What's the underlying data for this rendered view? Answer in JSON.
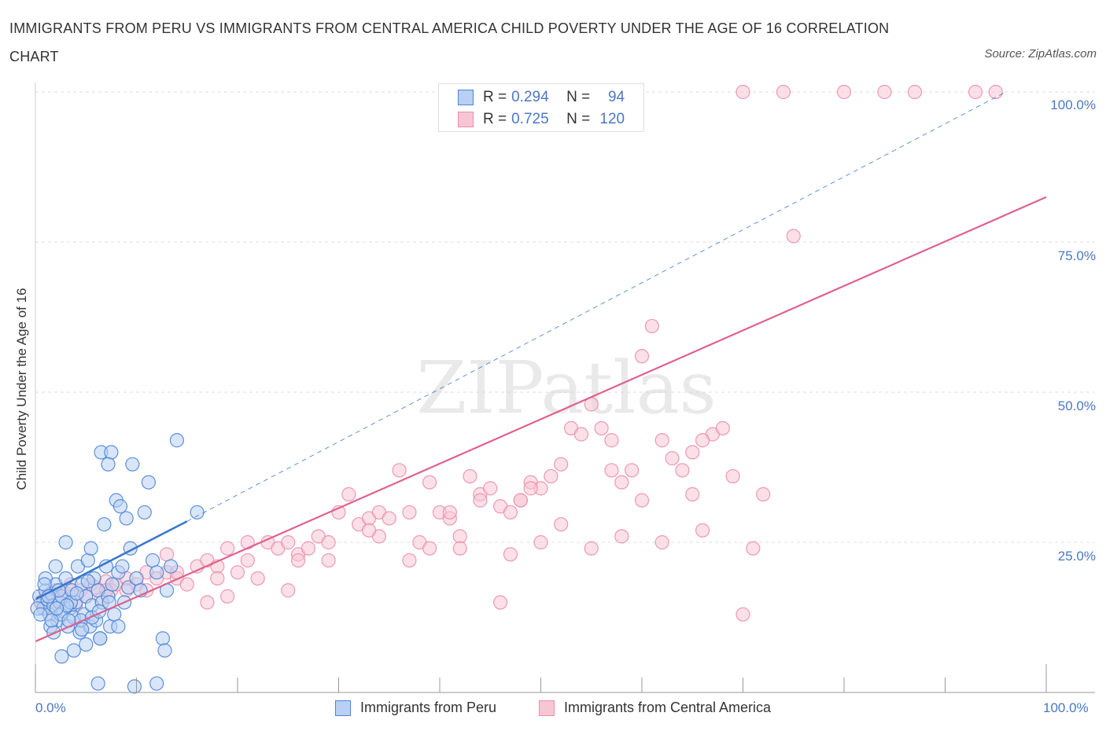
{
  "header": {
    "title": "IMMIGRANTS FROM PERU VS IMMIGRANTS FROM CENTRAL AMERICA CHILD POVERTY UNDER THE AGE OF 16 CORRELATION CHART",
    "source": "Source: ZipAtlas.com"
  },
  "legend": {
    "r_label": "R =",
    "n_label": "N =",
    "series": [
      {
        "r": "0.294",
        "n": "94"
      },
      {
        "r": "0.725",
        "n": "120"
      }
    ]
  },
  "colors": {
    "peru_fill": "#b9d0f2",
    "peru_stroke": "#4a86d8",
    "peru_line": "#3a78c8",
    "ca_fill": "#f7c6d5",
    "ca_stroke": "#ea8fab",
    "ca_line": "#e0608c",
    "grid": "#dcdcdc",
    "tick_label": "#4a78c8"
  },
  "chart_data": {
    "type": "scatter",
    "xlabel": "",
    "ylabel": "Child Poverty Under the Age of 16",
    "xlim": [
      0,
      100
    ],
    "ylim": [
      0,
      100
    ],
    "x_tick_labels": [
      "0.0%",
      "100.0%"
    ],
    "y_ticks": [
      {
        "value": 25,
        "label": "25.0%"
      },
      {
        "value": 50,
        "label": "50.0%"
      },
      {
        "value": 75,
        "label": "75.0%"
      },
      {
        "value": 100,
        "label": "100.0%"
      }
    ],
    "legend": [
      "Immigrants from Peru",
      "Immigrants from Central America"
    ],
    "watermark": "ZIPatlas",
    "series": [
      {
        "name": "Immigrants from Peru",
        "trend": {
          "x0": 0,
          "y0": 15.5,
          "x1": 15,
          "y1": 28.5,
          "dash_to": [
            96,
            100
          ]
        },
        "points": [
          [
            0.4,
            16
          ],
          [
            0.6,
            15
          ],
          [
            0.8,
            14
          ],
          [
            1,
            17
          ],
          [
            1.2,
            15.5
          ],
          [
            1.4,
            13
          ],
          [
            1.6,
            16.5
          ],
          [
            1.8,
            14.5
          ],
          [
            2,
            18
          ],
          [
            2.2,
            12
          ],
          [
            2.4,
            15
          ],
          [
            2.6,
            16
          ],
          [
            2.8,
            13.5
          ],
          [
            3,
            19
          ],
          [
            3.2,
            11
          ],
          [
            3.4,
            14
          ],
          [
            3.6,
            17
          ],
          [
            3.8,
            12.5
          ],
          [
            4,
            15
          ],
          [
            4.2,
            21
          ],
          [
            4.4,
            10
          ],
          [
            4.6,
            18
          ],
          [
            4.8,
            13
          ],
          [
            5,
            16
          ],
          [
            5.2,
            22
          ],
          [
            5.4,
            11
          ],
          [
            5.6,
            14.5
          ],
          [
            5.8,
            19
          ],
          [
            6,
            12
          ],
          [
            6.2,
            17
          ],
          [
            6.4,
            9
          ],
          [
            6.6,
            15
          ],
          [
            6.8,
            28
          ],
          [
            7,
            21
          ],
          [
            7.2,
            16
          ],
          [
            7.4,
            11
          ],
          [
            7.6,
            18
          ],
          [
            7.8,
            13
          ],
          [
            8,
            32
          ],
          [
            8.2,
            20
          ],
          [
            8.4,
            31
          ],
          [
            8.6,
            21
          ],
          [
            8.8,
            15
          ],
          [
            9,
            29
          ],
          [
            9.2,
            17.5
          ],
          [
            9.4,
            24
          ],
          [
            9.6,
            38
          ],
          [
            10,
            19
          ],
          [
            10.4,
            17
          ],
          [
            10.8,
            30
          ],
          [
            11.2,
            35
          ],
          [
            11.6,
            22
          ],
          [
            12,
            20
          ],
          [
            12.6,
            9
          ],
          [
            13,
            17
          ],
          [
            13.4,
            21
          ],
          [
            1.5,
            11
          ],
          [
            2.5,
            13
          ],
          [
            3.5,
            15
          ],
          [
            4.5,
            12
          ],
          [
            5.5,
            24
          ],
          [
            3,
            25
          ],
          [
            2,
            21
          ],
          [
            1,
            19
          ],
          [
            6.5,
            40
          ],
          [
            7.5,
            40
          ],
          [
            7.2,
            38
          ],
          [
            14,
            42
          ],
          [
            16,
            30
          ],
          [
            12,
            1.5
          ],
          [
            9.8,
            1
          ],
          [
            6.2,
            1.5
          ],
          [
            2.6,
            6
          ],
          [
            3.8,
            7
          ],
          [
            5,
            8
          ],
          [
            6.4,
            9
          ],
          [
            8.2,
            11
          ],
          [
            1.8,
            10
          ],
          [
            4.6,
            10.5
          ],
          [
            5.6,
            12.5
          ],
          [
            0.2,
            14
          ],
          [
            0.9,
            18
          ],
          [
            1.6,
            12
          ],
          [
            2.3,
            17
          ],
          [
            3.1,
            14.5
          ],
          [
            4.1,
            16.5
          ],
          [
            5.2,
            18.5
          ],
          [
            6.3,
            13.5
          ],
          [
            7.3,
            15
          ],
          [
            0.5,
            13
          ],
          [
            1.3,
            16
          ],
          [
            2.1,
            14
          ],
          [
            3.3,
            12
          ],
          [
            12.8,
            7
          ]
        ]
      },
      {
        "name": "Immigrants from Central America",
        "trend": {
          "x0": 0,
          "y0": 8.5,
          "x1": 100,
          "y1": 82.5
        },
        "points": [
          [
            0.5,
            15
          ],
          [
            1,
            16
          ],
          [
            1.5,
            14
          ],
          [
            2,
            17
          ],
          [
            2.5,
            15.5
          ],
          [
            3,
            16.5
          ],
          [
            3.5,
            18
          ],
          [
            4,
            14.5
          ],
          [
            4.5,
            17
          ],
          [
            5,
            16
          ],
          [
            5.5,
            18
          ],
          [
            6,
            17.5
          ],
          [
            6.5,
            15.5
          ],
          [
            7,
            18.5
          ],
          [
            7.5,
            17
          ],
          [
            8,
            18
          ],
          [
            9,
            19
          ],
          [
            10,
            18
          ],
          [
            11,
            20
          ],
          [
            12,
            19
          ],
          [
            13,
            20
          ],
          [
            14,
            19
          ],
          [
            15,
            18
          ],
          [
            16,
            21
          ],
          [
            17,
            22
          ],
          [
            18,
            21
          ],
          [
            19,
            24
          ],
          [
            20,
            20
          ],
          [
            21,
            22
          ],
          [
            22,
            19
          ],
          [
            23,
            25
          ],
          [
            24,
            24
          ],
          [
            25,
            25
          ],
          [
            26,
            23
          ],
          [
            27,
            24
          ],
          [
            28,
            26
          ],
          [
            29,
            25
          ],
          [
            30,
            30
          ],
          [
            31,
            33
          ],
          [
            32,
            28
          ],
          [
            33,
            29
          ],
          [
            34,
            30
          ],
          [
            35,
            29
          ],
          [
            36,
            37
          ],
          [
            37,
            30
          ],
          [
            38,
            25
          ],
          [
            39,
            24
          ],
          [
            40,
            30
          ],
          [
            41,
            29
          ],
          [
            42,
            26
          ],
          [
            43,
            36
          ],
          [
            44,
            33
          ],
          [
            45,
            34
          ],
          [
            46,
            31
          ],
          [
            47,
            23
          ],
          [
            48,
            32
          ],
          [
            49,
            35
          ],
          [
            50,
            34
          ],
          [
            51,
            36
          ],
          [
            52,
            38
          ],
          [
            53,
            44
          ],
          [
            54,
            43
          ],
          [
            55,
            48
          ],
          [
            56,
            44
          ],
          [
            57,
            42
          ],
          [
            58,
            35
          ],
          [
            59,
            37
          ],
          [
            60,
            56
          ],
          [
            61,
            61
          ],
          [
            62,
            42
          ],
          [
            63,
            39
          ],
          [
            64,
            37
          ],
          [
            65,
            33
          ],
          [
            66,
            27
          ],
          [
            67,
            43
          ],
          [
            68,
            44
          ],
          [
            69,
            36
          ],
          [
            70,
            13
          ],
          [
            71,
            24
          ],
          [
            72,
            33
          ],
          [
            13,
            23
          ],
          [
            21,
            25
          ],
          [
            29,
            22
          ],
          [
            37,
            22
          ],
          [
            46,
            15
          ],
          [
            9,
            17
          ],
          [
            11,
            17
          ],
          [
            7,
            17
          ],
          [
            19,
            16
          ],
          [
            17,
            15
          ],
          [
            25,
            17
          ],
          [
            34,
            26
          ],
          [
            42,
            24
          ],
          [
            50,
            25
          ],
          [
            58,
            26
          ],
          [
            66,
            42
          ],
          [
            75,
            76
          ],
          [
            55,
            24
          ],
          [
            62,
            25
          ],
          [
            48,
            32
          ],
          [
            39,
            35
          ],
          [
            44,
            32
          ],
          [
            52,
            28
          ],
          [
            60,
            32
          ],
          [
            47,
            30
          ],
          [
            70,
            100
          ],
          [
            74,
            100
          ],
          [
            80,
            100
          ],
          [
            84,
            100
          ],
          [
            93,
            100
          ],
          [
            95,
            100
          ],
          [
            87,
            100
          ],
          [
            26,
            22
          ],
          [
            18,
            19
          ],
          [
            14,
            20
          ],
          [
            33,
            27
          ],
          [
            41,
            30
          ],
          [
            49,
            34
          ],
          [
            57,
            37
          ],
          [
            65,
            40
          ]
        ]
      }
    ]
  }
}
